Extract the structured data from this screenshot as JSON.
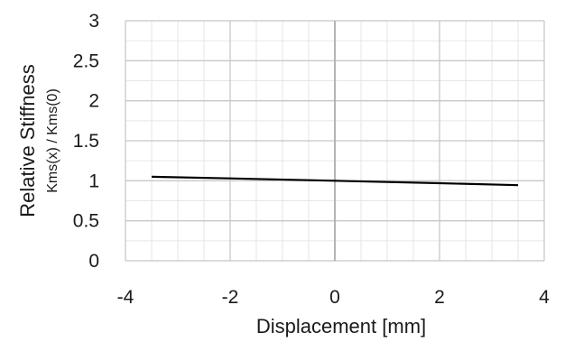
{
  "chart_data": {
    "type": "line",
    "title": "",
    "xlabel": "Displacement [mm]",
    "ylabel": "Relative Stiffness",
    "ylabel_sub": "Kms(x) / Kms(0)",
    "xlim": [
      -4,
      4
    ],
    "ylim": [
      0,
      3
    ],
    "x_ticks": [
      "-4",
      "-2",
      "0",
      "2",
      "4"
    ],
    "y_ticks": [
      "0",
      "0.5",
      "1",
      "1.5",
      "2",
      "2.5",
      "3"
    ],
    "x_tick_values": [
      -4,
      -2,
      0,
      2,
      4
    ],
    "y_tick_values": [
      0,
      0.5,
      1,
      1.5,
      2,
      2.5,
      3
    ],
    "minor_x_step": 0.5,
    "minor_y_step": 0.25,
    "grid": true,
    "legend": "none",
    "series": [
      {
        "x": [
          -3.5,
          -2,
          0,
          2,
          3.5
        ],
        "y": [
          1.05,
          1.03,
          1.0,
          0.97,
          0.945
        ],
        "color": "#000000"
      }
    ],
    "colors": {
      "major_grid": "#c8c8c8",
      "minor_grid": "#e6e6e6",
      "zero_line": "#b4b4b4",
      "line": "#000000"
    }
  }
}
